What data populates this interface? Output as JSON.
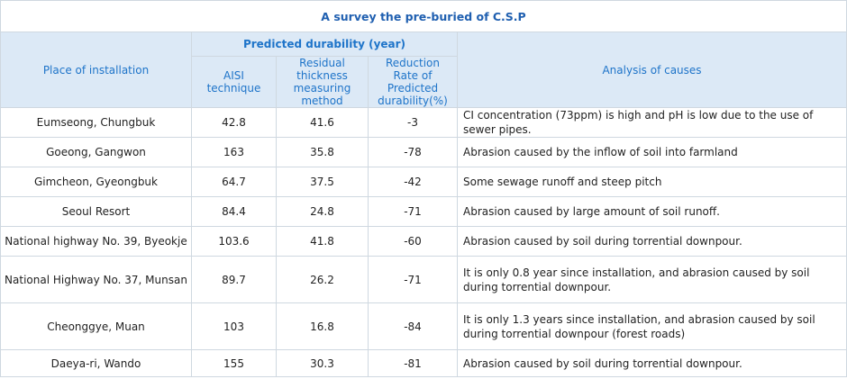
{
  "title": "A survey the pre-buried of C.S.P",
  "headers": {
    "place": "Place of installation",
    "durability_group": "Predicted durability (year)",
    "aisi": "AISI technique",
    "residual": "Residual thickness measuring method",
    "reduction": "Reduction Rate of Predicted durability(%)",
    "analysis": "Analysis  of causes"
  },
  "rows": [
    {
      "place": "Eumseong, Chungbuk",
      "aisi": "42.8",
      "residual": "41.6",
      "reduction": "-3",
      "analysis": "CI concentration (73ppm) is high and pH is low due to the use of sewer pipes."
    },
    {
      "place": "Goeong, Gangwon",
      "aisi": "163",
      "residual": "35.8",
      "reduction": "-78",
      "analysis": "Abrasion   caused by the inflow of soil into farmland"
    },
    {
      "place": "Gimcheon, Gyeongbuk",
      "aisi": "64.7",
      "residual": "37.5",
      "reduction": "-42",
      "analysis": "Some sewage runoff and steep pitch"
    },
    {
      "place": "Seoul Resort",
      "aisi": "84.4",
      "residual": "24.8",
      "reduction": "-71",
      "analysis": "Abrasion caused by large amount of soil runoff."
    },
    {
      "place": "National highway No. 39, Byeokje",
      "aisi": "103.6",
      "residual": "41.8",
      "reduction": "-60",
      "analysis": "Abrasion caused by soil during torrential downpour."
    },
    {
      "place": "National Highway No. 37, Munsan",
      "aisi": "89.7",
      "residual": "26.2",
      "reduction": "-71",
      "analysis": "It is only 0.8 year since installation, and abrasion caused by soil during torrential downpour."
    },
    {
      "place": "Cheonggye, Muan",
      "aisi": "103",
      "residual": "16.8",
      "reduction": "-84",
      "analysis": "It is only 1.3 years since installation, and abrasion caused by soil during torrential downpour (forest roads)"
    },
    {
      "place": "Daeya-ri, Wando",
      "aisi": "155",
      "residual": "30.3",
      "reduction": "-81",
      "analysis": "Abrasion caused by soil during torrential downpour."
    }
  ]
}
